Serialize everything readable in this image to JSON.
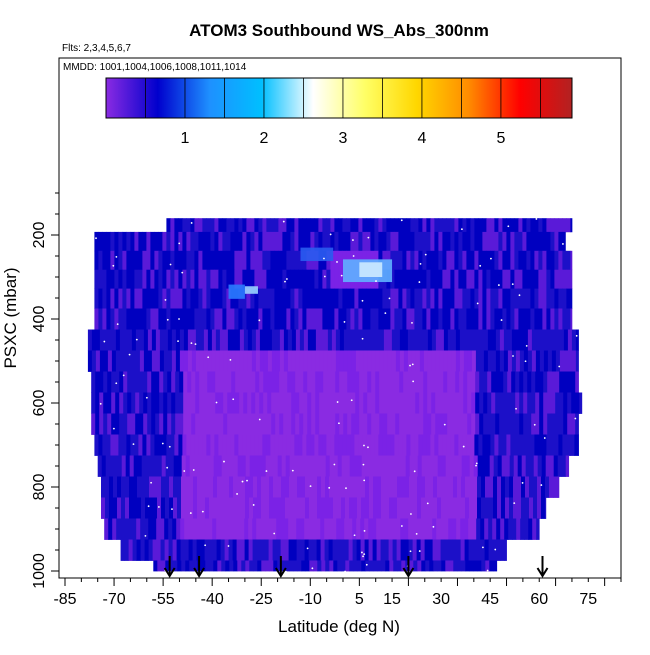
{
  "chart_data": {
    "type": "heatmap",
    "title": "ATOM3 Southbound WS_Abs_300nm",
    "subtitle_flights": "Flts: 2,3,4,5,6,7",
    "subtitle_dates": "MMDD: 1001,1004,1006,1008,1011,1014",
    "xlabel": "Latitude (deg N)",
    "ylabel": "PSXC (mbar)",
    "xlim": [
      -85,
      85
    ],
    "ylim": [
      1000,
      100
    ],
    "x_ticks": [
      -85,
      -70,
      -55,
      -40,
      -25,
      -10,
      5,
      15,
      30,
      45,
      60,
      75
    ],
    "x_tick_labels": [
      "-85",
      "-70",
      "-55",
      "-40",
      "-25",
      "-10",
      "5",
      "15",
      "30",
      "45",
      "60",
      "75"
    ],
    "y_ticks": [
      200,
      400,
      600,
      800,
      1000
    ],
    "y_tick_labels": [
      "200",
      "400",
      "600",
      "800",
      "1000"
    ],
    "colorbar": {
      "range": [
        0,
        5.9
      ],
      "ticks": [
        1,
        2,
        3,
        4,
        5
      ],
      "tick_labels": [
        "1",
        "2",
        "3",
        "4",
        "5"
      ],
      "colors": [
        "#8a2be2",
        "#0000cd",
        "#1e90ff",
        "#00bfff",
        "#ffffff",
        "#ffff66",
        "#ffd700",
        "#ff8c00",
        "#ff0000",
        "#b22222"
      ]
    },
    "flight_arrows_lat": [
      -53,
      -44,
      -19,
      20,
      61
    ],
    "grid": false,
    "field_description_levels": [
      {
        "p": 170,
        "lat": [
          -54,
          70
        ]
      },
      {
        "p": 215,
        "lat": [
          -76,
          68
        ]
      },
      {
        "p": 260,
        "lat": [
          -76,
          70
        ]
      },
      {
        "p": 305,
        "lat": [
          -76,
          70
        ]
      },
      {
        "p": 350,
        "lat": [
          -76,
          70
        ]
      },
      {
        "p": 400,
        "lat": [
          -76,
          70
        ]
      },
      {
        "p": 450,
        "lat": [
          -78,
          72
        ]
      },
      {
        "p": 500,
        "lat": [
          -78,
          72
        ]
      },
      {
        "p": 550,
        "lat": [
          -77,
          72
        ]
      },
      {
        "p": 600,
        "lat": [
          -77,
          73
        ]
      },
      {
        "p": 650,
        "lat": [
          -77,
          72
        ]
      },
      {
        "p": 700,
        "lat": [
          -76,
          72
        ]
      },
      {
        "p": 750,
        "lat": [
          -75,
          69
        ]
      },
      {
        "p": 800,
        "lat": [
          -74,
          66
        ]
      },
      {
        "p": 850,
        "lat": [
          -74,
          62
        ]
      },
      {
        "p": 900,
        "lat": [
          -73,
          60
        ]
      },
      {
        "p": 950,
        "lat": [
          -68,
          50
        ]
      },
      {
        "p": 1000,
        "lat": [
          -58,
          47
        ]
      }
    ]
  }
}
